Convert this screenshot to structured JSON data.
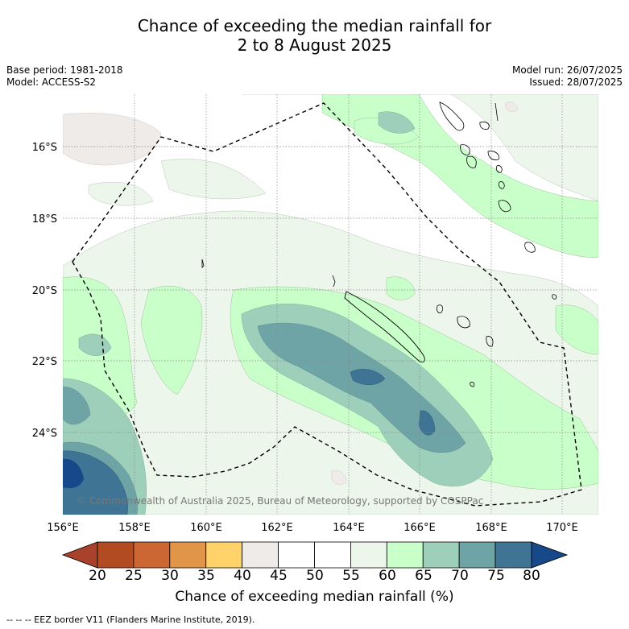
{
  "title_line1": "Chance of exceeding the median rainfall for",
  "title_line2": "2 to 8 August 2025",
  "info": {
    "base_period": "Base period: 1981-2018",
    "model": "Model: ACCESS-S2",
    "model_run": "Model run: 26/07/2025",
    "issued": "Issued: 28/07/2025"
  },
  "map": {
    "x_ticks": [
      "156°E",
      "158°E",
      "160°E",
      "162°E",
      "164°E",
      "166°E",
      "168°E",
      "170°E"
    ],
    "y_ticks": [
      "16°S",
      "18°S",
      "20°S",
      "22°S",
      "24°S"
    ],
    "copyright": "© Commonwealth of Australia 2025, Bureau of Meteorology, supported by COSPPac",
    "grid": true
  },
  "colorbar": {
    "ticks": [
      "20",
      "25",
      "30",
      "35",
      "40",
      "45",
      "50",
      "55",
      "60",
      "65",
      "70",
      "75",
      "80"
    ],
    "colors": [
      "#a8422a",
      "#b24a22",
      "#cc6633",
      "#e19549",
      "#ffd26a",
      "#efebe8",
      "#ffffff",
      "#ffffff",
      "#ecf6ea",
      "#c9ffc9",
      "#9dcfba",
      "#6fa4a6",
      "#3f7495",
      "#17498a"
    ],
    "label": "Chance of exceeding median rainfall (%)"
  },
  "footnote": "-- -- -- EEZ border V11 (Flanders Marine Institute, 2019)."
}
